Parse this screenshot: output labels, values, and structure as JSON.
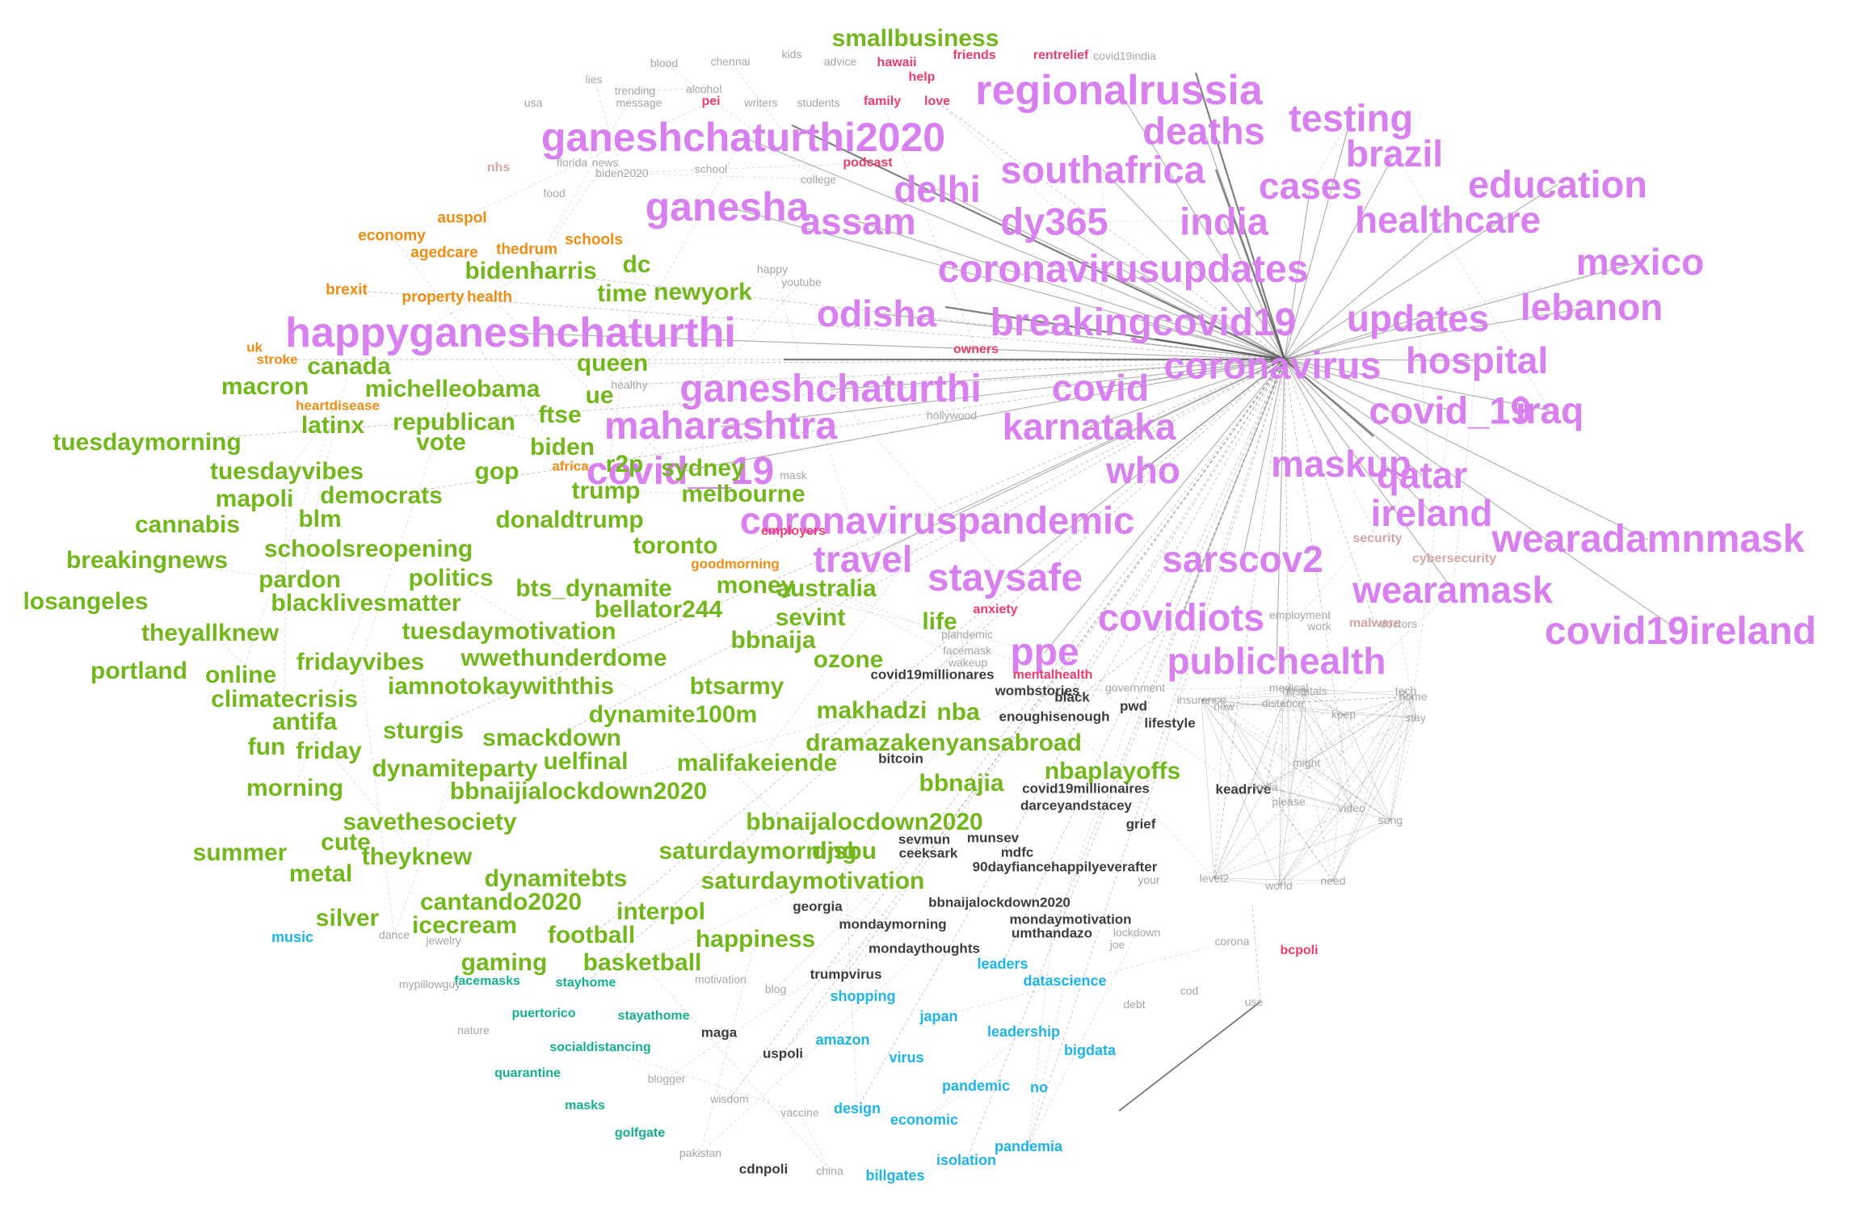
{
  "clusters": {
    "purple": [
      "regionalrussia",
      "ganeshchaturthi2020",
      "deaths",
      "testing",
      "brazil",
      "southafrica",
      "cases",
      "education",
      "delhi",
      "dy365",
      "india",
      "healthcare",
      "ganesha",
      "assam",
      "coronavirusupdates",
      "mexico",
      "odisha",
      "breakingcovid19",
      "updates",
      "lebanon",
      "happyganeshchaturthi",
      "coronavirus",
      "hospital",
      "ganeshchaturthi",
      "covid",
      "maharashtra",
      "karnataka",
      "covid_19",
      "iraq",
      "covid__19",
      "who",
      "maskup",
      "qatar",
      "coronaviruspandemic",
      "ireland",
      "wearadamnmask",
      "travel",
      "sarscov2",
      "staysafe",
      "wearamask",
      "covidiots",
      "covid19ireland",
      "ppe",
      "publichealth"
    ],
    "green": [
      "smallbusiness",
      "dc",
      "bidenharris",
      "time",
      "newyork",
      "canada",
      "queen",
      "macron",
      "michelleobama",
      "ue",
      "ftse",
      "latinx",
      "republican",
      "tuesdaymorning",
      "vote",
      "biden",
      "r2p",
      "gop",
      "sydney",
      "tuesdayvibes",
      "mapoli",
      "democrats",
      "trump",
      "melbourne",
      "cannabis",
      "blm",
      "donaldtrump",
      "breakingnews",
      "schoolsreopening",
      "toronto",
      "pardon",
      "politics",
      "losangeles",
      "blacklivesmatter",
      "bts_dynamite",
      "money",
      "australia",
      "bellator244",
      "theyallknew",
      "tuesdaymotivation",
      "sevint",
      "life",
      "bbnaija",
      "ozone",
      "portland",
      "online",
      "fridayvibes",
      "wwethunderdome",
      "iamnotokaywiththis",
      "btsarmy",
      "climatecrisis",
      "antifa",
      "dynamite100m",
      "makhadzi",
      "nba",
      "sturgis",
      "smackdown",
      "dramazakenyansabroad",
      "fun",
      "friday",
      "dynamiteparty",
      "uelfinal",
      "malifakeiende",
      "nbaplayoffs",
      "morning",
      "bbnajia",
      "bbnaijialockdown2020",
      "savethesociety",
      "bbnaijalocdown2020",
      "summer",
      "cute",
      "theyknew",
      "saturdaymorning",
      "djsbu",
      "metal",
      "dynamitebts",
      "saturdaymotivation",
      "cantando2020",
      "interpol",
      "silver",
      "icecream",
      "football",
      "happiness",
      "gaming",
      "basketball"
    ],
    "orange": [
      "auspol",
      "economy",
      "schools",
      "agedcare",
      "thedrum",
      "brexit",
      "property",
      "health",
      "uk",
      "stroke",
      "heartdisease",
      "africa",
      "goodmorning"
    ],
    "pink": [
      "hawaii",
      "friends",
      "rentrelief",
      "help",
      "pei",
      "family",
      "love",
      "podcast",
      "owners",
      "employers",
      "anxiety",
      "mentalhealth",
      "bcpoli"
    ],
    "dark": [
      "covid19millionares",
      "wombstories",
      "black",
      "pwd",
      "enoughisenough",
      "lifestyle",
      "bitcoin",
      "covid19millionaires",
      "keadrive",
      "darceyandstacey",
      "grief",
      "sevmun",
      "munsev",
      "ceeksark",
      "mdfc",
      "90dayfiancehappilyeverafter",
      "bbnaijalockdown2020",
      "georgia",
      "mondaymotivation",
      "mondaymorning",
      "umthandazo",
      "mondaythoughts",
      "trumpvirus",
      "maga",
      "uspoli",
      "cdnpoli"
    ],
    "cyan": [
      "music",
      "leaders",
      "shopping",
      "datascience",
      "japan",
      "leadership",
      "amazon",
      "virus",
      "bigdata",
      "pandemic",
      "no",
      "design",
      "economic",
      "pandemia",
      "isolation",
      "billgates"
    ],
    "teal": [
      "facemasks",
      "stayhome",
      "puertorico",
      "stayathome",
      "socialdistancing",
      "quarantine",
      "masks",
      "golfgate"
    ],
    "gray": [
      "chennai",
      "kids",
      "advice",
      "covid19india",
      "lies",
      "blood",
      "trending",
      "alcohol",
      "usa",
      "message",
      "writers",
      "students",
      "florida",
      "news",
      "biden2020",
      "school",
      "college",
      "food",
      "happy",
      "youtube",
      "healthy",
      "hollywood",
      "mask",
      "plandemic",
      "facemask",
      "wakeup",
      "employment",
      "work",
      "doctors",
      "government",
      "insurance",
      "medical",
      "hospitals",
      "tech",
      "home",
      "new",
      "distance",
      "keep",
      "stay",
      "might",
      "india",
      "please",
      "video",
      "song",
      "your",
      "level2",
      "world",
      "need",
      "lockdown",
      "corona",
      "joe",
      "cod",
      "use",
      "debt",
      "dance",
      "jewelry",
      "mypillowguy",
      "motivation",
      "blog",
      "nature",
      "blogger",
      "wisdom",
      "vaccine",
      "pakistan",
      "china"
    ],
    "rose": [
      "nhs",
      "security",
      "cybersecurity",
      "malware"
    ]
  }
}
